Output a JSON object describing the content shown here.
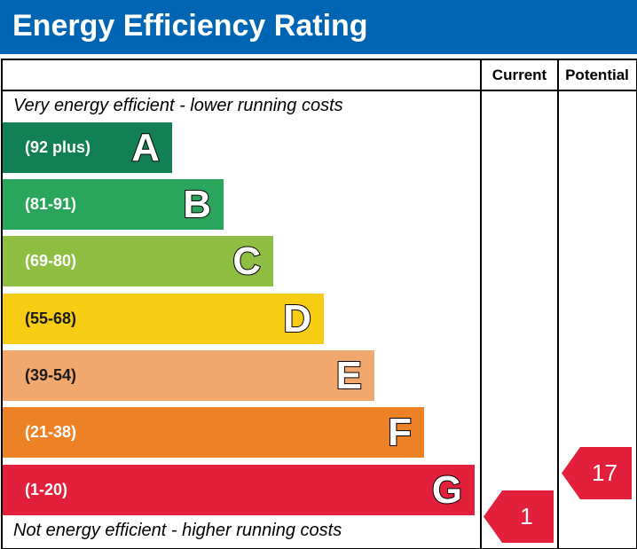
{
  "title": "Energy Efficiency Rating",
  "columns": {
    "current": "Current",
    "potential": "Potential"
  },
  "captions": {
    "top": "Very energy efficient - lower running costs",
    "bottom": "Not energy efficient - higher running costs"
  },
  "colors": {
    "header": "#0066b3",
    "marker": "#e2203c"
  },
  "chart_data": {
    "type": "bar",
    "categories": [
      "A",
      "B",
      "C",
      "D",
      "E",
      "F",
      "G"
    ],
    "bands": [
      {
        "letter": "A",
        "range": "(92 plus)",
        "min": 92,
        "max": null,
        "color": "#127f55"
      },
      {
        "letter": "B",
        "range": "(81-91)",
        "min": 81,
        "max": 91,
        "color": "#2aa55c"
      },
      {
        "letter": "C",
        "range": "(69-80)",
        "min": 69,
        "max": 80,
        "color": "#8ebe42"
      },
      {
        "letter": "D",
        "range": "(55-68)",
        "min": 55,
        "max": 68,
        "color": "#f7cd14"
      },
      {
        "letter": "E",
        "range": "(39-54)",
        "min": 39,
        "max": 54,
        "color": "#f2a86c"
      },
      {
        "letter": "F",
        "range": "(21-38)",
        "min": 21,
        "max": 38,
        "color": "#ec8126"
      },
      {
        "letter": "G",
        "range": "(1-20)",
        "min": 1,
        "max": 20,
        "color": "#e2203c"
      }
    ],
    "current": {
      "value": "1",
      "band": "G"
    },
    "potential": {
      "value": "17",
      "band": "G"
    }
  }
}
